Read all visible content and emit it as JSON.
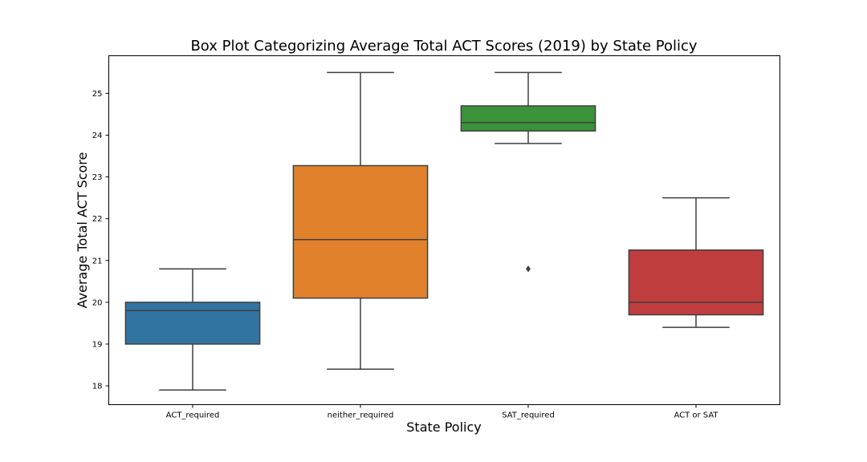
{
  "chart_data": {
    "type": "box",
    "title": "Box Plot Categorizing Average Total ACT Scores (2019) by State Policy",
    "xlabel": "State Policy",
    "ylabel": "Average Total ACT Score",
    "ylim": [
      17.55,
      25.9
    ],
    "yticks": [
      18,
      19,
      20,
      21,
      22,
      23,
      24,
      25
    ],
    "grid": false,
    "categories": [
      "ACT_required",
      "neither_required",
      "SAT_required",
      "ACT or SAT"
    ],
    "boxes": [
      {
        "category": "ACT_required",
        "whisker_low": 17.9,
        "q1": 19.0,
        "median": 19.8,
        "q3": 20.0,
        "whisker_high": 20.8,
        "outliers": [],
        "color": "#3274a1"
      },
      {
        "category": "neither_required",
        "whisker_low": 18.4,
        "q1": 20.1,
        "median": 21.5,
        "q3": 23.27,
        "whisker_high": 25.5,
        "outliers": [],
        "color": "#e1812c"
      },
      {
        "category": "SAT_required",
        "whisker_low": 23.8,
        "q1": 24.1,
        "median": 24.3,
        "q3": 24.7,
        "whisker_high": 25.5,
        "outliers": [
          20.8
        ],
        "color": "#3a923a"
      },
      {
        "category": "ACT or SAT",
        "whisker_low": 19.4,
        "q1": 19.7,
        "median": 20.0,
        "q3": 21.25,
        "whisker_high": 22.5,
        "outliers": [],
        "color": "#c03d3e"
      }
    ]
  }
}
